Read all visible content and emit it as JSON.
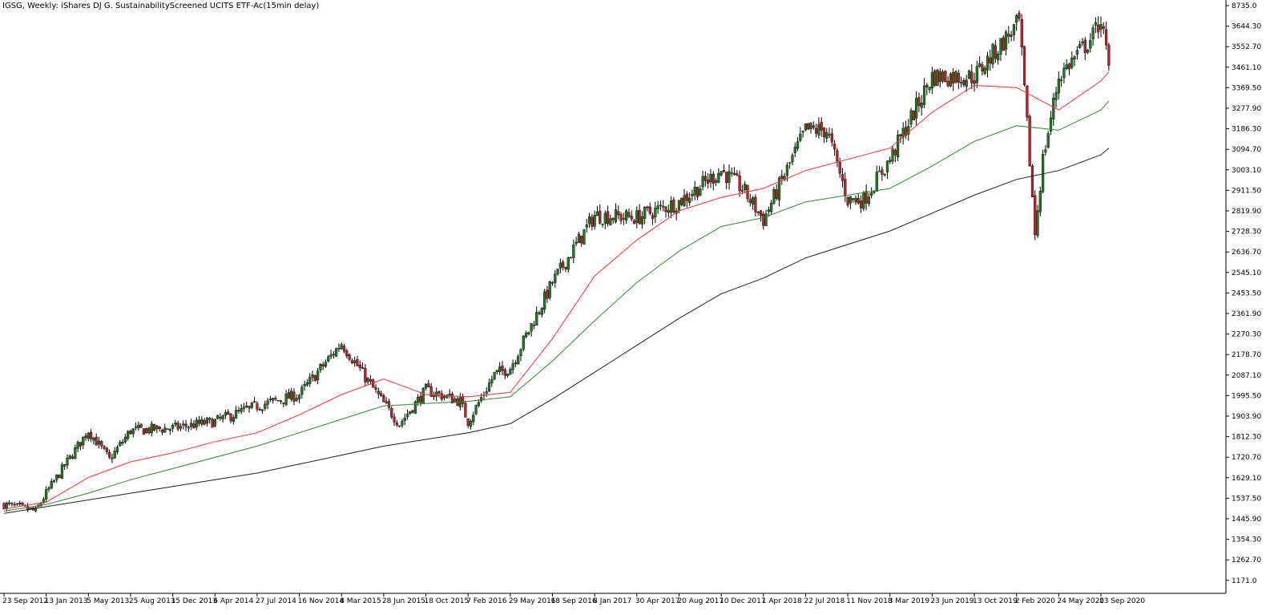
{
  "window": {
    "title": "IGSG, Weekly:  iShares DJ G. SustainabilityScreened UCITS ETF-Ac(15min delay)"
  },
  "colors": {
    "background": "#ffffff",
    "axis": "#000000",
    "candle_up": "#1f7a1f",
    "candle_down": "#c0202a",
    "wick": "#000000",
    "ma_fast": "#ff3030",
    "ma_mid": "#2e8b2e",
    "ma_slow": "#202020"
  },
  "chart_data": {
    "type": "candlestick",
    "title": "IGSG, Weekly:  iShares DJ G. SustainabilityScreened UCITS ETF-Ac(15min delay)",
    "grid": false,
    "ylim": [
      1171.0,
      8735.0
    ],
    "y_ticks": [
      "8735.0",
      "3644.30",
      "3552.70",
      "3461.10",
      "3369.50",
      "3277.90",
      "3186.30",
      "3094.70",
      "3003.10",
      "2911.50",
      "2819.90",
      "2728.30",
      "2636.70",
      "2545.10",
      "2453.50",
      "2361.90",
      "2270.30",
      "2178.70",
      "2087.10",
      "1995.50",
      "1903.90",
      "1812.30",
      "1720.70",
      "1629.10",
      "1537.50",
      "1445.90",
      "1354.30",
      "1262.70",
      "1171.0"
    ],
    "x_ticks": [
      "23 Sep 2012",
      "13 Jan 2013",
      "5 May 2013",
      "25 Aug 2013",
      "15 Dec 2013",
      "6 Apr 2014",
      "27 Jul 2014",
      "16 Nov 2014",
      "8 Mar 2015",
      "28 Jun 2015",
      "18 Oct 2015",
      "7 Feb 2016",
      "29 May 2016",
      "18 Sep 2016",
      "8 Jan 2017",
      "30 Apr 2017",
      "20 Aug 2017",
      "10 Dec 2017",
      "1 Apr 2018",
      "22 Jul 2018",
      "11 Nov 2018",
      "3 Mar 2019",
      "23 Jun 2019",
      "13 Oct 2019",
      "2 Feb 2020",
      "24 May 2020",
      "13 Sep 2020"
    ],
    "price_keypoints": {
      "x": [
        "23 Sep 2012",
        "16 Dec 2012",
        "13 Jan 2013",
        "5 May 2013",
        "30 Jun 2013",
        "25 Aug 2013",
        "15 Dec 2013",
        "6 Apr 2014",
        "27 Jul 2014",
        "16 Nov 2014",
        "8 Mar 2015",
        "28 Jun 2015",
        "9 Aug 2015",
        "18 Oct 2015",
        "17 Jan 2016",
        "7 Feb 2016",
        "17 Apr 2016",
        "29 May 2016",
        "18 Sep 2016",
        "8 Jan 2017",
        "30 Apr 2017",
        "20 Aug 2017",
        "10 Dec 2017",
        "4 Feb 2018",
        "1 Apr 2018",
        "22 Jul 2018",
        "16 Sep 2018",
        "11 Nov 2018",
        "23 Dec 2018",
        "3 Mar 2019",
        "23 Jun 2019",
        "13 Oct 2019",
        "9 Feb 2020",
        "1 Mar 2020",
        "22 Mar 2020",
        "12 Apr 2020",
        "24 May 2020",
        "23 Aug 2020",
        "13 Sep 2020",
        "4 Oct 2020"
      ],
      "close": [
        1510,
        1480,
        1560,
        1840,
        1710,
        1840,
        1850,
        1880,
        1950,
        2000,
        2230,
        1960,
        1870,
        2020,
        1970,
        1880,
        2090,
        2120,
        2500,
        2800,
        2790,
        2860,
        3000,
        2920,
        2780,
        3180,
        3180,
        2870,
        2870,
        3050,
        3420,
        3420,
        3660,
        3200,
        2720,
        3050,
        3420,
        3600,
        3680,
        3450
      ]
    },
    "series": [
      {
        "name": "",
        "x": [
          "23 Sep 2012",
          "13 Jan 2013",
          "5 May 2013",
          "25 Aug 2013",
          "15 Dec 2013",
          "6 Apr 2014",
          "27 Jul 2014",
          "16 Nov 2014",
          "8 Mar 2015",
          "28 Jun 2015",
          "18 Oct 2015",
          "7 Feb 2016",
          "29 May 2016",
          "18 Sep 2016",
          "8 Jan 2017",
          "30 Apr 2017",
          "20 Aug 2017",
          "10 Dec 2017",
          "1 Apr 2018",
          "22 Jul 2018",
          "11 Nov 2018",
          "3 Mar 2019",
          "23 Jun 2019",
          "13 Oct 2019",
          "2 Feb 2020",
          "24 May 2020",
          "13 Sep 2020",
          "4 Oct 2020"
        ],
        "values": [
          1490,
          1520,
          1630,
          1700,
          1740,
          1790,
          1830,
          1910,
          2000,
          2070,
          2000,
          1990,
          2010,
          2250,
          2530,
          2690,
          2820,
          2880,
          2920,
          3000,
          3050,
          3100,
          3260,
          3380,
          3370,
          3270,
          3400,
          3440
        ]
      },
      {
        "name": "",
        "x": [
          "23 Sep 2012",
          "13 Jan 2013",
          "5 May 2013",
          "25 Aug 2013",
          "15 Dec 2013",
          "6 Apr 2014",
          "27 Jul 2014",
          "16 Nov 2014",
          "8 Mar 2015",
          "28 Jun 2015",
          "18 Oct 2015",
          "7 Feb 2016",
          "29 May 2016",
          "18 Sep 2016",
          "8 Jan 2017",
          "30 Apr 2017",
          "20 Aug 2017",
          "10 Dec 2017",
          "1 Apr 2018",
          "22 Jul 2018",
          "11 Nov 2018",
          "3 Mar 2019",
          "23 Jun 2019",
          "13 Oct 2019",
          "2 Feb 2020",
          "24 May 2020",
          "13 Sep 2020",
          "4 Oct 2020"
        ],
        "values": [
          1480,
          1510,
          1560,
          1620,
          1670,
          1720,
          1770,
          1830,
          1890,
          1950,
          1960,
          1970,
          1990,
          2150,
          2330,
          2500,
          2640,
          2750,
          2790,
          2860,
          2890,
          2920,
          3020,
          3130,
          3200,
          3180,
          3270,
          3310
        ]
      },
      {
        "name": "",
        "x": [
          "23 Sep 2012",
          "13 Jan 2013",
          "5 May 2013",
          "25 Aug 2013",
          "15 Dec 2013",
          "6 Apr 2014",
          "27 Jul 2014",
          "16 Nov 2014",
          "8 Mar 2015",
          "28 Jun 2015",
          "18 Oct 2015",
          "7 Feb 2016",
          "29 May 2016",
          "18 Sep 2016",
          "8 Jan 2017",
          "30 Apr 2017",
          "20 Aug 2017",
          "10 Dec 2017",
          "1 Apr 2018",
          "22 Jul 2018",
          "11 Nov 2018",
          "3 Mar 2019",
          "23 Jun 2019",
          "13 Oct 2019",
          "2 Feb 2020",
          "24 May 2020",
          "13 Sep 2020",
          "4 Oct 2020"
        ],
        "values": [
          1470,
          1500,
          1530,
          1560,
          1590,
          1620,
          1650,
          1690,
          1730,
          1770,
          1800,
          1830,
          1870,
          1980,
          2100,
          2220,
          2340,
          2450,
          2520,
          2610,
          2670,
          2730,
          2810,
          2890,
          2960,
          3000,
          3070,
          3100
        ]
      }
    ]
  }
}
